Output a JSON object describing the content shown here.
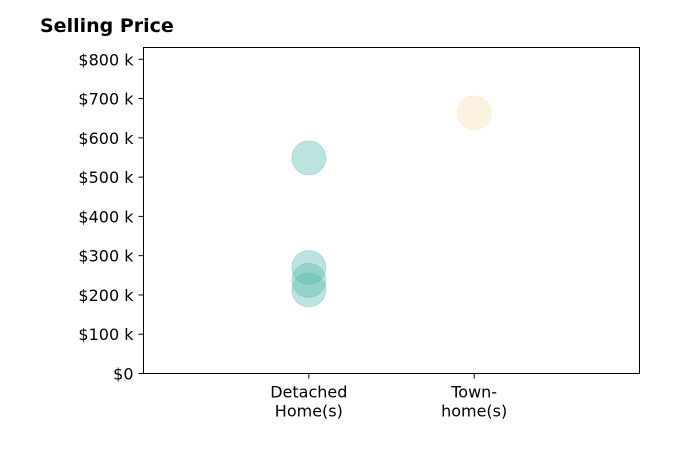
{
  "chart_data": {
    "type": "scatter",
    "title": "Selling Price",
    "xlabel": "",
    "ylabel": "",
    "categories": [
      [
        "Detached",
        "Home(s)"
      ],
      [
        "Town-",
        "home(s)"
      ]
    ],
    "ylim": [
      0,
      830000
    ],
    "yticks": [
      0,
      100000,
      200000,
      300000,
      400000,
      500000,
      600000,
      700000,
      800000
    ],
    "ytick_labels": [
      "$0",
      "$100 k",
      "$200 k",
      "$300 k",
      "$400 k",
      "$500 k",
      "$600 k",
      "$700 k",
      "$800 k"
    ],
    "grid": false,
    "legend": "none",
    "series": [
      {
        "category_index": 0,
        "color": "#5bb8ad",
        "values": [
          549000,
          270000,
          237000,
          213000
        ]
      },
      {
        "category_index": 1,
        "color": "#f5dfae",
        "values": [
          664000
        ]
      }
    ]
  }
}
